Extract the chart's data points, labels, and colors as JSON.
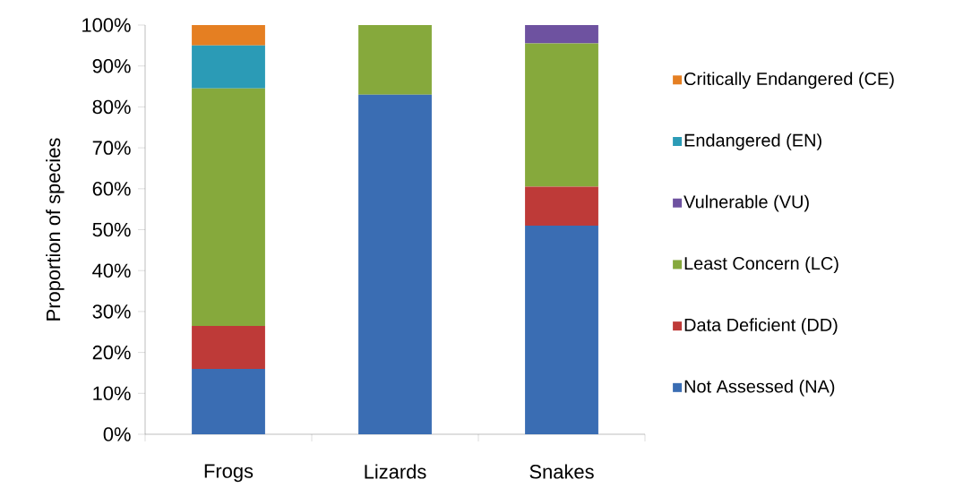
{
  "chart_data": {
    "type": "bar",
    "stacked": true,
    "ylabel": "Proportion of species",
    "categories": [
      "Frogs",
      "Lizards",
      "Snakes"
    ],
    "series": [
      {
        "name": "Not Assessed (NA)",
        "color": "#3a6db3",
        "values": [
          16,
          83,
          51
        ]
      },
      {
        "name": "Data Deficient (DD)",
        "color": "#be3a38",
        "values": [
          10.5,
          0,
          9.5
        ]
      },
      {
        "name": "Least Concern (LC)",
        "color": "#86a93c",
        "values": [
          58,
          17,
          35
        ]
      },
      {
        "name": "Vulnerable (VU)",
        "color": "#6e52a0",
        "values": [
          0,
          0,
          4.5
        ]
      },
      {
        "name": "Endangered (EN)",
        "color": "#2b9bb6",
        "values": [
          10.5,
          0,
          0
        ]
      },
      {
        "name": "Critically Endangered (CE)",
        "color": "#e57f22",
        "values": [
          5,
          0,
          0
        ]
      }
    ],
    "ylim": [
      0,
      100
    ],
    "yticks": [
      {
        "value": 0,
        "label": "0%"
      },
      {
        "value": 10,
        "label": "10%"
      },
      {
        "value": 20,
        "label": "20%"
      },
      {
        "value": 30,
        "label": "30%"
      },
      {
        "value": 40,
        "label": "40%"
      },
      {
        "value": 50,
        "label": "50%"
      },
      {
        "value": 60,
        "label": "60%"
      },
      {
        "value": 70,
        "label": "70%"
      },
      {
        "value": 80,
        "label": "80%"
      },
      {
        "value": 90,
        "label": "90%"
      },
      {
        "value": 100,
        "label": "100%"
      }
    ],
    "legend": "right"
  }
}
